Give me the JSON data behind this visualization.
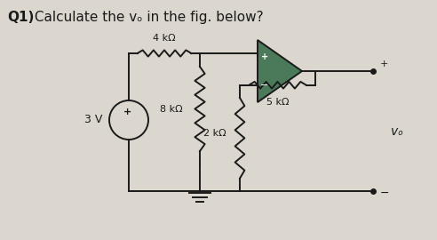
{
  "title_bold": "Q1)",
  "title_rest": " Calculate the vₒ in the fig. below?",
  "title_fontsize": 11,
  "bg_color": "#dbd7ce",
  "line_color": "#1a1a1a",
  "opamp_fill": "#4a7a5a",
  "labels": {
    "R1": "4 kΩ",
    "R2": "8 kΩ",
    "R3": "5 kΩ",
    "R4": "2 kΩ",
    "Vs": "3 V",
    "Vo": "vₒ"
  }
}
